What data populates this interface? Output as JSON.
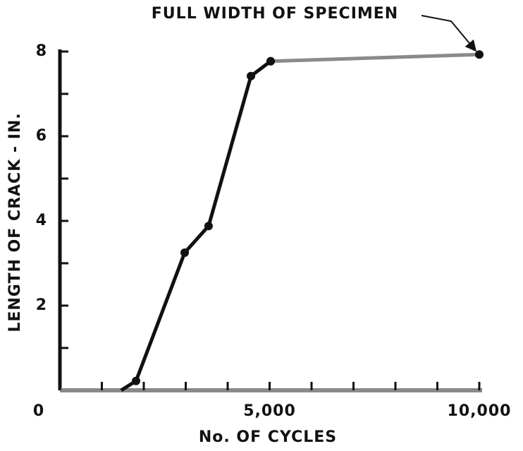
{
  "chart_data": {
    "type": "line",
    "annotation": "FULL WIDTH OF SPECIMEN",
    "xlabel": "No. OF CYCLES",
    "ylabel": "LENGTH OF CRACK - IN.",
    "series": [
      {
        "color": "#111111",
        "x": [
          1460,
          1815,
          2975,
          3545,
          4555,
          5025
        ],
        "values": [
          0,
          0.22,
          3.25,
          3.88,
          7.42,
          7.77
        ]
      },
      {
        "color": "#8a8a8a",
        "x": [
          5025,
          10000
        ],
        "values": [
          7.77,
          7.93
        ]
      }
    ],
    "xlim": [
      0,
      10000
    ],
    "ylim": [
      0,
      8
    ],
    "xticks": [
      0,
      {
        "value": 5000,
        "label": "5,000"
      },
      {
        "value": 10000,
        "label": "10,000"
      }
    ],
    "xminor_ticks": [
      1000,
      2000,
      3000,
      4000,
      6000,
      7000,
      8000,
      9000
    ],
    "yticks": [
      2,
      4,
      6,
      8
    ],
    "yminor_ticks": [
      1,
      3,
      5,
      7
    ]
  }
}
